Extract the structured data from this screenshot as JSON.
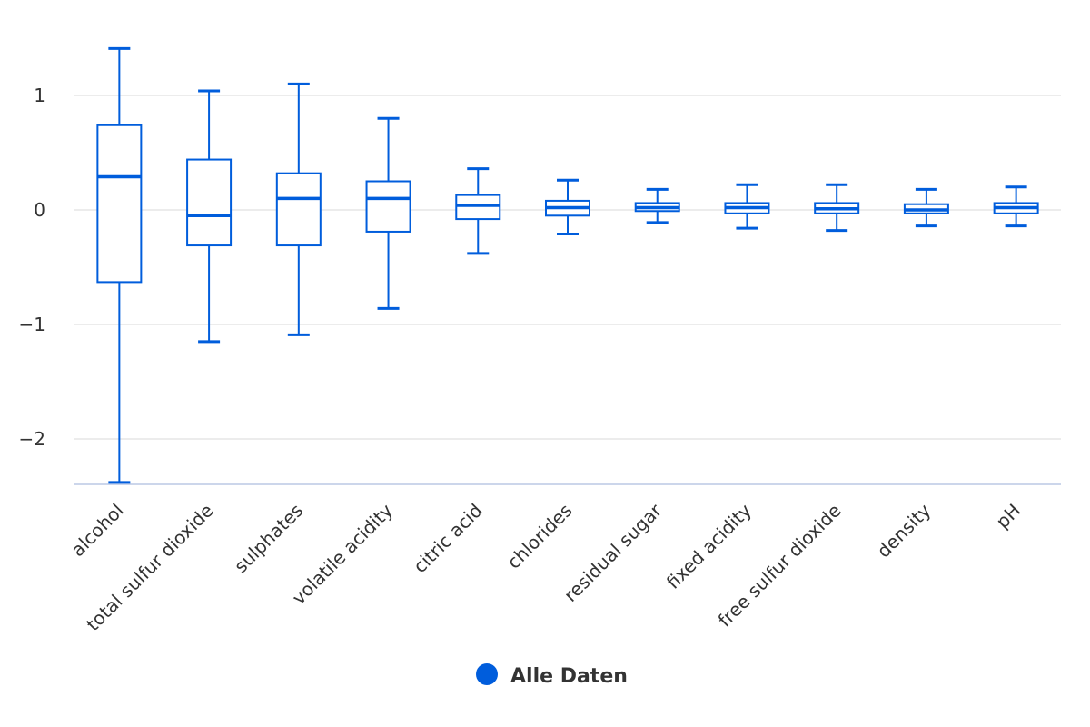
{
  "chart_data": {
    "type": "boxplot",
    "title": "",
    "xlabel": "",
    "ylabel": "",
    "ylim": [
      -2.4,
      1.45
    ],
    "y_ticks": [
      {
        "value": 1,
        "label": "1"
      },
      {
        "value": 0,
        "label": "0"
      },
      {
        "value": -1,
        "label": "−1"
      },
      {
        "value": -2,
        "label": "−2"
      }
    ],
    "grid": true,
    "legend": {
      "position": "bottom-center"
    },
    "categories": [
      "alcohol",
      "total sulfur dioxide",
      "sulphates",
      "volatile acidity",
      "citric acid",
      "chlorides",
      "residual sugar",
      "fixed acidity",
      "free sulfur dioxide",
      "density",
      "pH"
    ],
    "series": [
      {
        "name": "Alle Daten",
        "color": "#005ddc",
        "boxes": [
          {
            "low": -2.38,
            "q1": -0.63,
            "median": 0.29,
            "q3": 0.74,
            "high": 1.41
          },
          {
            "low": -1.15,
            "q1": -0.31,
            "median": -0.05,
            "q3": 0.44,
            "high": 1.04
          },
          {
            "low": -1.09,
            "q1": -0.31,
            "median": 0.1,
            "q3": 0.32,
            "high": 1.1
          },
          {
            "low": -0.86,
            "q1": -0.19,
            "median": 0.1,
            "q3": 0.25,
            "high": 0.8
          },
          {
            "low": -0.38,
            "q1": -0.08,
            "median": 0.04,
            "q3": 0.13,
            "high": 0.36
          },
          {
            "low": -0.21,
            "q1": -0.05,
            "median": 0.02,
            "q3": 0.08,
            "high": 0.26
          },
          {
            "low": -0.11,
            "q1": -0.01,
            "median": 0.02,
            "q3": 0.06,
            "high": 0.18
          },
          {
            "low": -0.16,
            "q1": -0.03,
            "median": 0.02,
            "q3": 0.06,
            "high": 0.22
          },
          {
            "low": -0.18,
            "q1": -0.03,
            "median": 0.01,
            "q3": 0.06,
            "high": 0.22
          },
          {
            "low": -0.14,
            "q1": -0.03,
            "median": 0.0,
            "q3": 0.05,
            "high": 0.18
          },
          {
            "low": -0.14,
            "q1": -0.03,
            "median": 0.02,
            "q3": 0.06,
            "high": 0.2
          }
        ]
      }
    ]
  }
}
